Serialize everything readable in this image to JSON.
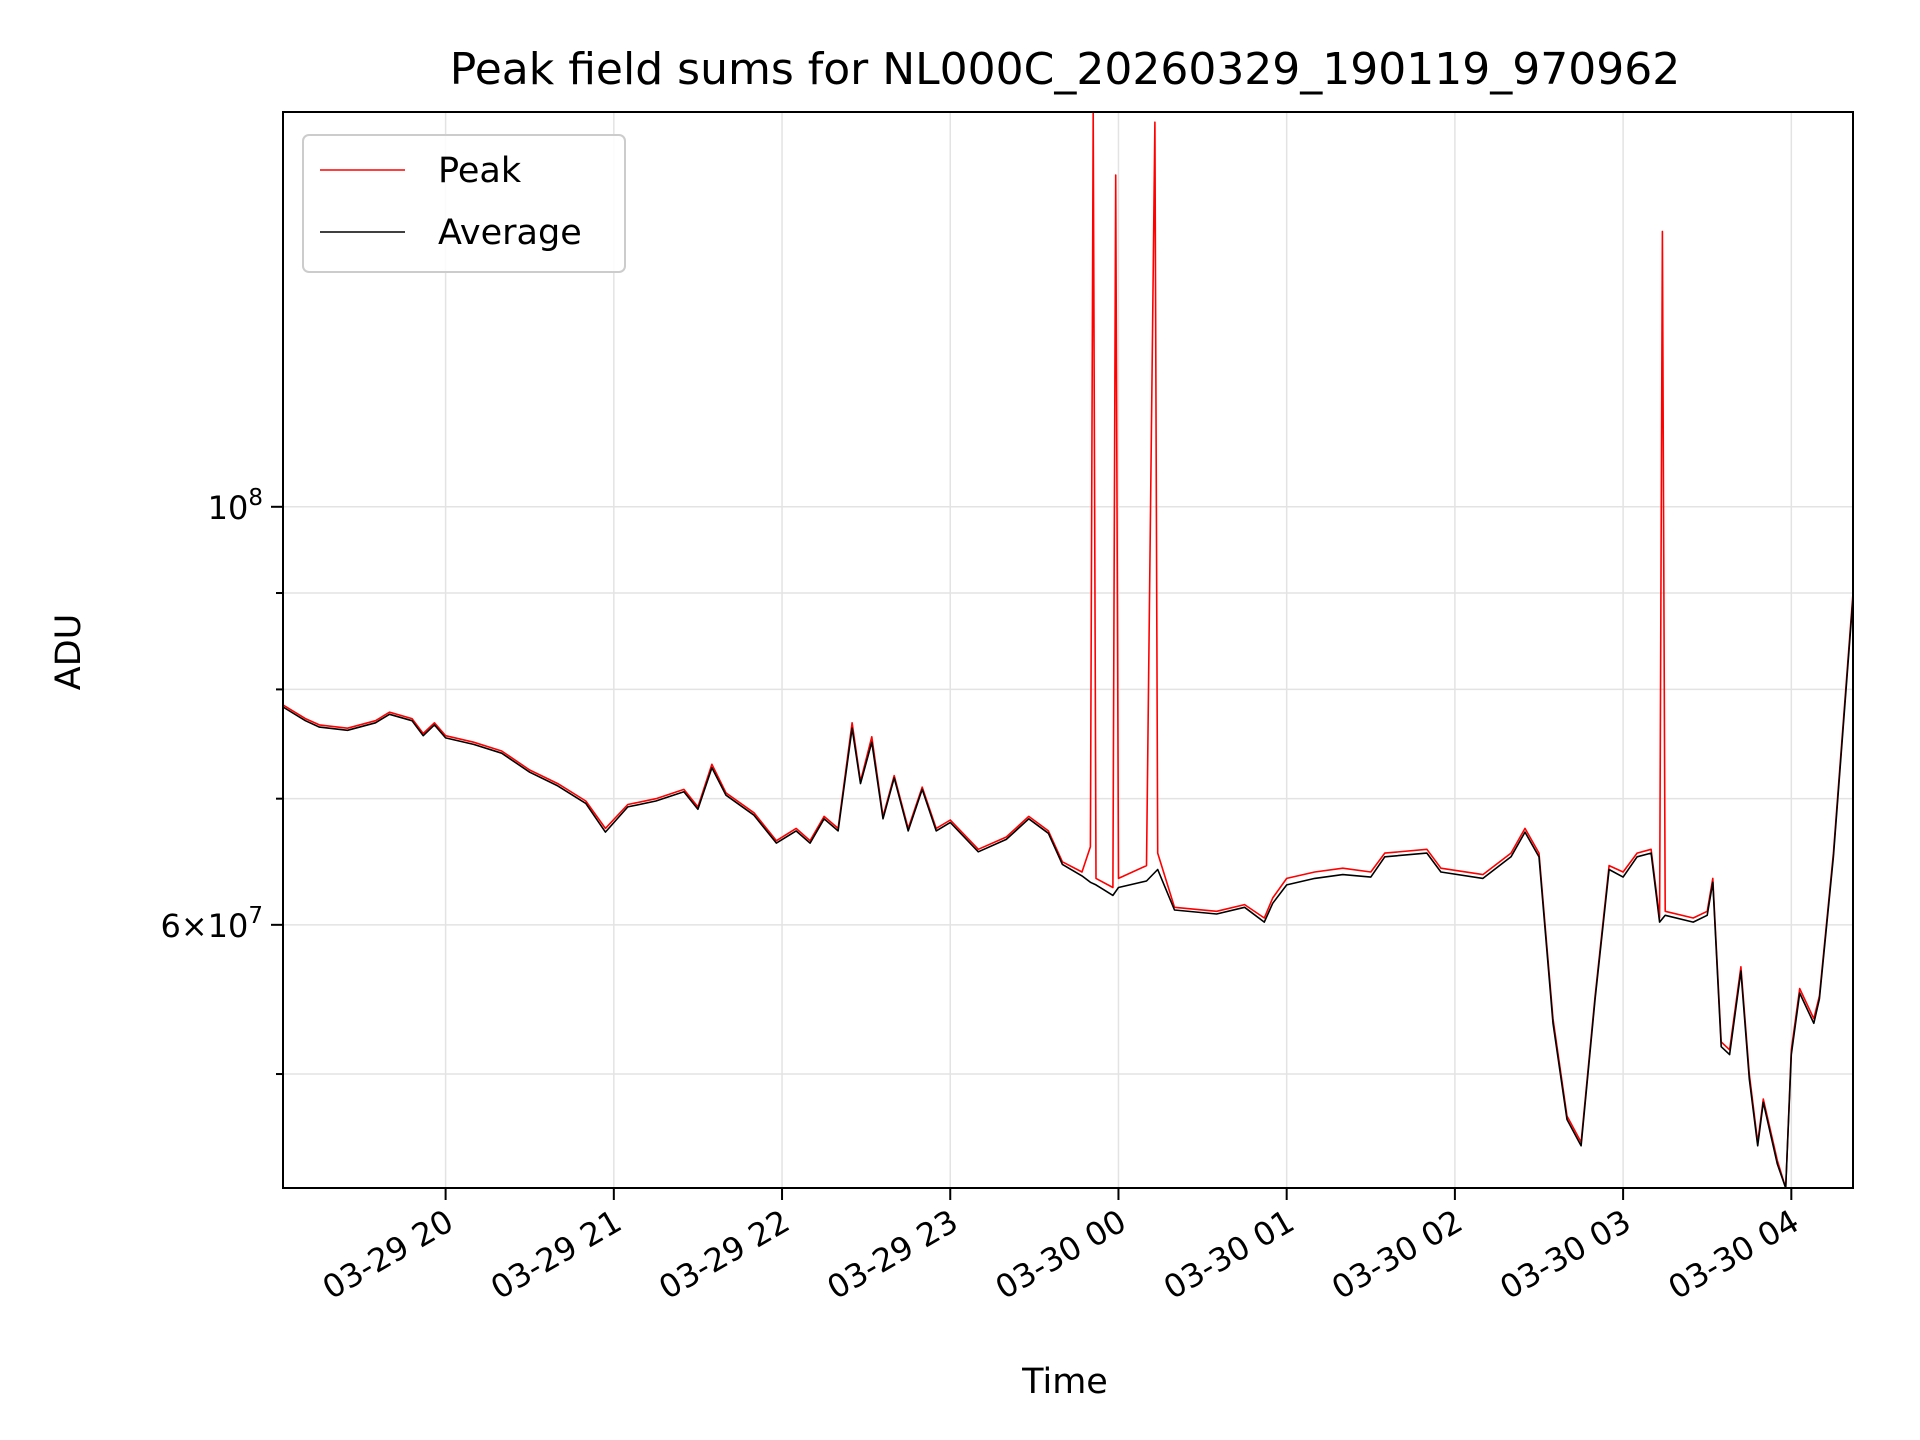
{
  "chart_data": {
    "type": "line",
    "title": "Peak field sums for NL000C_20260329_190119_970962",
    "xlabel": "Time",
    "ylabel": "ADU",
    "yscale": "log",
    "grid": true,
    "legend_position": "top-left",
    "xlim": [
      "2026-03-29 19:02",
      "2026-03-30 04:22"
    ],
    "ylim": [
      43500000,
      162000000
    ],
    "x_ticks": [
      {
        "value": "2026-03-29 20:00",
        "label": "03-29 20"
      },
      {
        "value": "2026-03-29 21:00",
        "label": "03-29 21"
      },
      {
        "value": "2026-03-29 22:00",
        "label": "03-29 22"
      },
      {
        "value": "2026-03-29 23:00",
        "label": "03-29 23"
      },
      {
        "value": "2026-03-30 00:00",
        "label": "03-30 00"
      },
      {
        "value": "2026-03-30 01:00",
        "label": "03-30 01"
      },
      {
        "value": "2026-03-30 02:00",
        "label": "03-30 02"
      },
      {
        "value": "2026-03-30 03:00",
        "label": "03-30 03"
      },
      {
        "value": "2026-03-30 04:00",
        "label": "03-30 04"
      }
    ],
    "y_major_ticks": [
      {
        "value": 60000000,
        "base": "6",
        "exp": "7"
      },
      {
        "value": 100000000,
        "base": "",
        "exp": "8"
      }
    ],
    "y_minor_ticks": [
      50000000,
      70000000,
      80000000,
      90000000
    ],
    "series": [
      {
        "name": "Peak",
        "color": "#ff0000",
        "points": [
          [
            "2026-03-29 19:02",
            78500000
          ],
          [
            "2026-03-29 19:10",
            77200000
          ],
          [
            "2026-03-29 19:15",
            76600000
          ],
          [
            "2026-03-29 19:25",
            76300000
          ],
          [
            "2026-03-29 19:35",
            77000000
          ],
          [
            "2026-03-29 19:40",
            77800000
          ],
          [
            "2026-03-29 19:48",
            77200000
          ],
          [
            "2026-03-29 19:52",
            75800000
          ],
          [
            "2026-03-29 19:56",
            76800000
          ],
          [
            "2026-03-29 20:00",
            75600000
          ],
          [
            "2026-03-29 20:10",
            75000000
          ],
          [
            "2026-03-29 20:20",
            74200000
          ],
          [
            "2026-03-29 20:30",
            72500000
          ],
          [
            "2026-03-29 20:40",
            71300000
          ],
          [
            "2026-03-29 20:50",
            69800000
          ],
          [
            "2026-03-29 20:57",
            67500000
          ],
          [
            "2026-03-29 21:05",
            69500000
          ],
          [
            "2026-03-29 21:15",
            70000000
          ],
          [
            "2026-03-29 21:25",
            70800000
          ],
          [
            "2026-03-29 21:30",
            69300000
          ],
          [
            "2026-03-29 21:35",
            73000000
          ],
          [
            "2026-03-29 21:40",
            70500000
          ],
          [
            "2026-03-29 21:50",
            68800000
          ],
          [
            "2026-03-29 21:58",
            66500000
          ],
          [
            "2026-03-29 22:05",
            67500000
          ],
          [
            "2026-03-29 22:10",
            66500000
          ],
          [
            "2026-03-29 22:15",
            68500000
          ],
          [
            "2026-03-29 22:20",
            67500000
          ],
          [
            "2026-03-29 22:25",
            76800000
          ],
          [
            "2026-03-29 22:28",
            71500000
          ],
          [
            "2026-03-29 22:32",
            75500000
          ],
          [
            "2026-03-29 22:36",
            68500000
          ],
          [
            "2026-03-29 22:40",
            72000000
          ],
          [
            "2026-03-29 22:45",
            67500000
          ],
          [
            "2026-03-29 22:50",
            71000000
          ],
          [
            "2026-03-29 22:55",
            67500000
          ],
          [
            "2026-03-29 23:00",
            68200000
          ],
          [
            "2026-03-29 23:10",
            65800000
          ],
          [
            "2026-03-29 23:20",
            66800000
          ],
          [
            "2026-03-29 23:28",
            68500000
          ],
          [
            "2026-03-29 23:35",
            67300000
          ],
          [
            "2026-03-29 23:40",
            64800000
          ],
          [
            "2026-03-29 23:47",
            64000000
          ],
          [
            "2026-03-29 23:50",
            66000000
          ],
          [
            "2026-03-29 23:51",
            162000000
          ],
          [
            "2026-03-29 23:52",
            63500000
          ],
          [
            "2026-03-29 23:58",
            62800000
          ],
          [
            "2026-03-29 23:59",
            150000000
          ],
          [
            "2026-03-30 00:00",
            63500000
          ],
          [
            "2026-03-30 00:10",
            64500000
          ],
          [
            "2026-03-30 00:13",
            160000000
          ],
          [
            "2026-03-30 00:14",
            65500000
          ],
          [
            "2026-03-30 00:20",
            61300000
          ],
          [
            "2026-03-30 00:35",
            61000000
          ],
          [
            "2026-03-30 00:45",
            61500000
          ],
          [
            "2026-03-30 00:52",
            60500000
          ],
          [
            "2026-03-30 00:55",
            62000000
          ],
          [
            "2026-03-30 01:00",
            63500000
          ],
          [
            "2026-03-30 01:10",
            64000000
          ],
          [
            "2026-03-30 01:20",
            64300000
          ],
          [
            "2026-03-30 01:30",
            64000000
          ],
          [
            "2026-03-30 01:35",
            65500000
          ],
          [
            "2026-03-30 01:50",
            65800000
          ],
          [
            "2026-03-30 01:55",
            64300000
          ],
          [
            "2026-03-30 02:10",
            63800000
          ],
          [
            "2026-03-30 02:20",
            65500000
          ],
          [
            "2026-03-30 02:25",
            67500000
          ],
          [
            "2026-03-30 02:30",
            65500000
          ],
          [
            "2026-03-30 02:35",
            53500000
          ],
          [
            "2026-03-30 02:40",
            47500000
          ],
          [
            "2026-03-30 02:45",
            46000000
          ],
          [
            "2026-03-30 02:50",
            55000000
          ],
          [
            "2026-03-30 02:55",
            64500000
          ],
          [
            "2026-03-30 03:00",
            64000000
          ],
          [
            "2026-03-30 03:05",
            65500000
          ],
          [
            "2026-03-30 03:10",
            65800000
          ],
          [
            "2026-03-30 03:13",
            60500000
          ],
          [
            "2026-03-30 03:14",
            140000000
          ],
          [
            "2026-03-30 03:15",
            61000000
          ],
          [
            "2026-03-30 03:25",
            60500000
          ],
          [
            "2026-03-30 03:30",
            61000000
          ],
          [
            "2026-03-30 03:32",
            63500000
          ],
          [
            "2026-03-30 03:35",
            52000000
          ],
          [
            "2026-03-30 03:38",
            51500000
          ],
          [
            "2026-03-30 03:42",
            57000000
          ],
          [
            "2026-03-30 03:45",
            50000000
          ],
          [
            "2026-03-30 03:48",
            46000000
          ],
          [
            "2026-03-30 03:50",
            48500000
          ],
          [
            "2026-03-30 03:55",
            45000000
          ],
          [
            "2026-03-30 03:58",
            43500000
          ],
          [
            "2026-03-30 04:00",
            51500000
          ],
          [
            "2026-03-30 04:03",
            55500000
          ],
          [
            "2026-03-30 04:08",
            53500000
          ],
          [
            "2026-03-30 04:10",
            55000000
          ],
          [
            "2026-03-30 04:15",
            65500000
          ],
          [
            "2026-03-30 04:22",
            90000000
          ]
        ]
      },
      {
        "name": "Average",
        "color": "#000000",
        "points": [
          [
            "2026-03-29 19:02",
            78300000
          ],
          [
            "2026-03-29 19:10",
            77000000
          ],
          [
            "2026-03-29 19:15",
            76400000
          ],
          [
            "2026-03-29 19:25",
            76100000
          ],
          [
            "2026-03-29 19:35",
            76800000
          ],
          [
            "2026-03-29 19:40",
            77600000
          ],
          [
            "2026-03-29 19:48",
            77000000
          ],
          [
            "2026-03-29 19:52",
            75600000
          ],
          [
            "2026-03-29 19:56",
            76600000
          ],
          [
            "2026-03-29 20:00",
            75400000
          ],
          [
            "2026-03-29 20:10",
            74800000
          ],
          [
            "2026-03-29 20:20",
            74000000
          ],
          [
            "2026-03-29 20:30",
            72300000
          ],
          [
            "2026-03-29 20:40",
            71100000
          ],
          [
            "2026-03-29 20:50",
            69600000
          ],
          [
            "2026-03-29 20:57",
            67200000
          ],
          [
            "2026-03-29 21:05",
            69300000
          ],
          [
            "2026-03-29 21:15",
            69800000
          ],
          [
            "2026-03-29 21:25",
            70600000
          ],
          [
            "2026-03-29 21:30",
            69100000
          ],
          [
            "2026-03-29 21:35",
            72700000
          ],
          [
            "2026-03-29 21:40",
            70300000
          ],
          [
            "2026-03-29 21:50",
            68600000
          ],
          [
            "2026-03-29 21:58",
            66300000
          ],
          [
            "2026-03-29 22:05",
            67300000
          ],
          [
            "2026-03-29 22:10",
            66300000
          ],
          [
            "2026-03-29 22:15",
            68300000
          ],
          [
            "2026-03-29 22:20",
            67300000
          ],
          [
            "2026-03-29 22:25",
            76300000
          ],
          [
            "2026-03-29 22:28",
            71300000
          ],
          [
            "2026-03-29 22:32",
            75000000
          ],
          [
            "2026-03-29 22:36",
            68300000
          ],
          [
            "2026-03-29 22:40",
            71800000
          ],
          [
            "2026-03-29 22:45",
            67300000
          ],
          [
            "2026-03-29 22:50",
            70800000
          ],
          [
            "2026-03-29 22:55",
            67300000
          ],
          [
            "2026-03-29 23:00",
            68000000
          ],
          [
            "2026-03-29 23:10",
            65600000
          ],
          [
            "2026-03-29 23:20",
            66600000
          ],
          [
            "2026-03-29 23:28",
            68300000
          ],
          [
            "2026-03-29 23:35",
            67100000
          ],
          [
            "2026-03-29 23:40",
            64600000
          ],
          [
            "2026-03-29 23:47",
            63700000
          ],
          [
            "2026-03-29 23:50",
            63200000
          ],
          [
            "2026-03-29 23:52",
            63000000
          ],
          [
            "2026-03-29 23:58",
            62200000
          ],
          [
            "2026-03-30 00:00",
            62800000
          ],
          [
            "2026-03-30 00:10",
            63300000
          ],
          [
            "2026-03-30 00:14",
            64200000
          ],
          [
            "2026-03-30 00:20",
            61100000
          ],
          [
            "2026-03-30 00:35",
            60800000
          ],
          [
            "2026-03-30 00:45",
            61300000
          ],
          [
            "2026-03-30 00:52",
            60200000
          ],
          [
            "2026-03-30 00:55",
            61600000
          ],
          [
            "2026-03-30 01:00",
            63000000
          ],
          [
            "2026-03-30 01:10",
            63500000
          ],
          [
            "2026-03-30 01:20",
            63800000
          ],
          [
            "2026-03-30 01:30",
            63600000
          ],
          [
            "2026-03-30 01:35",
            65200000
          ],
          [
            "2026-03-30 01:50",
            65500000
          ],
          [
            "2026-03-30 01:55",
            64000000
          ],
          [
            "2026-03-30 02:10",
            63500000
          ],
          [
            "2026-03-30 02:20",
            65200000
          ],
          [
            "2026-03-30 02:25",
            67200000
          ],
          [
            "2026-03-30 02:30",
            65200000
          ],
          [
            "2026-03-30 02:35",
            53200000
          ],
          [
            "2026-03-30 02:40",
            47300000
          ],
          [
            "2026-03-30 02:45",
            45800000
          ],
          [
            "2026-03-30 02:50",
            54800000
          ],
          [
            "2026-03-30 02:55",
            64200000
          ],
          [
            "2026-03-30 03:00",
            63600000
          ],
          [
            "2026-03-30 03:05",
            65200000
          ],
          [
            "2026-03-30 03:10",
            65500000
          ],
          [
            "2026-03-30 03:13",
            60200000
          ],
          [
            "2026-03-30 03:15",
            60700000
          ],
          [
            "2026-03-30 03:25",
            60200000
          ],
          [
            "2026-03-30 03:30",
            60700000
          ],
          [
            "2026-03-30 03:32",
            63200000
          ],
          [
            "2026-03-30 03:35",
            51700000
          ],
          [
            "2026-03-30 03:38",
            51200000
          ],
          [
            "2026-03-30 03:42",
            56700000
          ],
          [
            "2026-03-30 03:45",
            49700000
          ],
          [
            "2026-03-30 03:48",
            45800000
          ],
          [
            "2026-03-30 03:50",
            48300000
          ],
          [
            "2026-03-30 03:55",
            44800000
          ],
          [
            "2026-03-30 03:58",
            43500000
          ],
          [
            "2026-03-30 04:00",
            51200000
          ],
          [
            "2026-03-30 04:03",
            55200000
          ],
          [
            "2026-03-30 04:08",
            53200000
          ],
          [
            "2026-03-30 04:10",
            54800000
          ],
          [
            "2026-03-30 04:15",
            65200000
          ],
          [
            "2026-03-30 04:22",
            89500000
          ]
        ]
      }
    ]
  }
}
